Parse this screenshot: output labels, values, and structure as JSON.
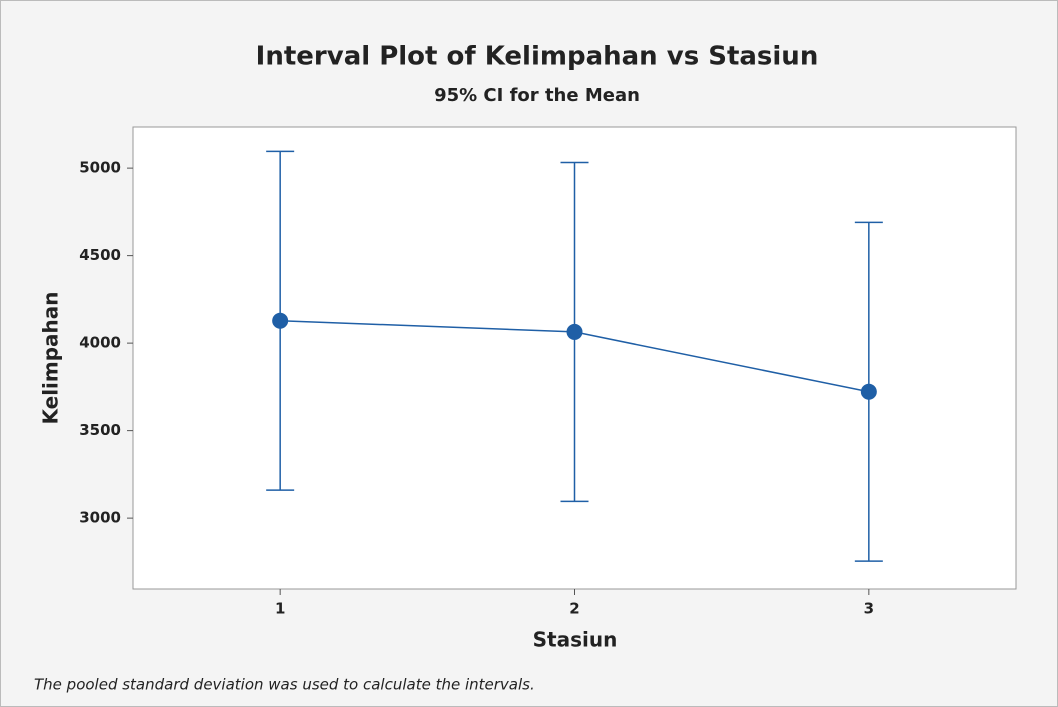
{
  "chart_data": {
    "type": "interval",
    "title": "Interval Plot of Kelimpahan vs Stasiun",
    "subtitle": "95% CI for the Mean",
    "x_label": "Stasiun",
    "y_label": "Kelimpahan",
    "footnote": "The pooled standard deviation was used to calculate the intervals.",
    "categories": [
      "1",
      "2",
      "3"
    ],
    "series": [
      {
        "color": "#1f5fa6",
        "values": [
          4128,
          4064,
          3722
        ],
        "errors": [
          968,
          968,
          968
        ]
      }
    ],
    "ylim": [
      2595,
      5235
    ],
    "yticks": [
      3000,
      3500,
      4000,
      4500,
      5000
    ]
  }
}
